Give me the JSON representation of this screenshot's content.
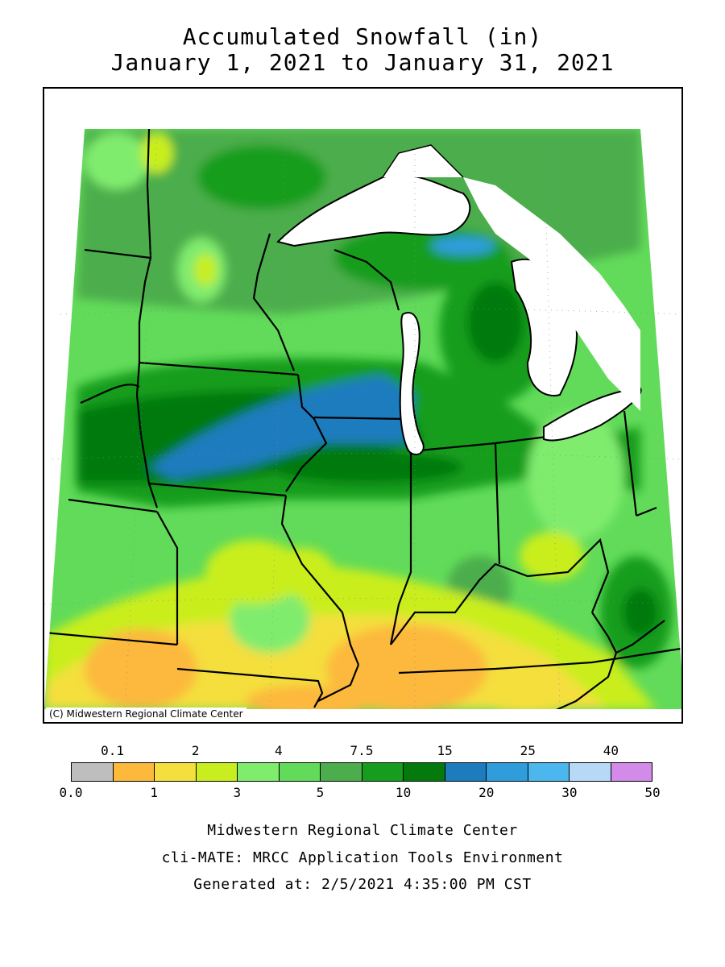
{
  "title": {
    "line1": "Accumulated Snowfall (in)",
    "line2": "January 1, 2021 to January 31, 2021"
  },
  "map": {
    "copyright": "(C) Midwestern Regional Climate Center"
  },
  "legend": {
    "bins": [
      {
        "color": "#bebebe"
      },
      {
        "color": "#fcb93c"
      },
      {
        "color": "#f4df3d"
      },
      {
        "color": "#c9ee1f"
      },
      {
        "color": "#80ec6e"
      },
      {
        "color": "#62db5a"
      },
      {
        "color": "#4cad4c"
      },
      {
        "color": "#169d1e"
      },
      {
        "color": "#037a0b"
      },
      {
        "color": "#1d7cbe"
      },
      {
        "color": "#2f9ddb"
      },
      {
        "color": "#4cb6ef"
      },
      {
        "color": "#b7d9f7"
      },
      {
        "color": "#d28be9"
      }
    ],
    "top_labels": [
      "0.1",
      "2",
      "4",
      "7.5",
      "15",
      "25",
      "40"
    ],
    "bottom_labels": [
      "0.0",
      "1",
      "3",
      "5",
      "10",
      "20",
      "30",
      "50"
    ]
  },
  "footer": {
    "line1": "Midwestern Regional Climate Center",
    "line2": "cli-MATE: MRCC Application Tools Environment",
    "line3": "Generated at: 2/5/2021 4:35:00 PM CST"
  }
}
